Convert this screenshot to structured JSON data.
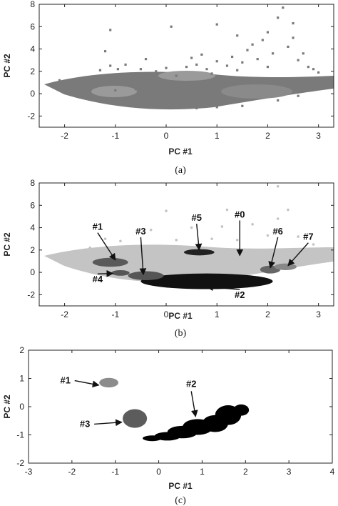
{
  "chart_data": [
    {
      "type": "scatter",
      "panel": "a",
      "caption": "(a)",
      "xlabel": "PC #1",
      "ylabel": "PC #2",
      "xlim": [
        -2.5,
        3.3
      ],
      "ylim": [
        -3,
        8
      ],
      "xticks": [
        -2,
        -1,
        0,
        1,
        2,
        3
      ],
      "yticks": [
        -2,
        0,
        2,
        4,
        6,
        8
      ],
      "marker": "square",
      "colors": {
        "points": "#7a7a7a",
        "dense": "#9a9a9a"
      },
      "points": [
        [
          -2.1,
          1.2
        ],
        [
          -2.0,
          0.6
        ],
        [
          -1.9,
          1.0
        ],
        [
          -1.8,
          0.4
        ],
        [
          -1.7,
          1.3
        ],
        [
          -1.6,
          0.2
        ],
        [
          -1.5,
          1.1
        ],
        [
          -1.4,
          0.8
        ],
        [
          -1.3,
          2.1
        ],
        [
          -1.2,
          3.8
        ],
        [
          -1.1,
          2.5
        ],
        [
          -1.05,
          1.6
        ],
        [
          -1.0,
          0.3
        ],
        [
          -0.95,
          2.2
        ],
        [
          -0.9,
          1.0
        ],
        [
          -0.8,
          2.6
        ],
        [
          -0.7,
          1.8
        ],
        [
          -0.6,
          0.4
        ],
        [
          -0.5,
          2.2
        ],
        [
          -0.4,
          3.1
        ],
        [
          -0.3,
          1.4
        ],
        [
          -0.2,
          2.0
        ],
        [
          -0.1,
          0.8
        ],
        [
          0.0,
          2.3
        ],
        [
          0.1,
          1.0
        ],
        [
          0.2,
          1.6
        ],
        [
          0.3,
          0.9
        ],
        [
          0.4,
          2.4
        ],
        [
          0.5,
          3.2
        ],
        [
          0.6,
          2.6
        ],
        [
          0.7,
          3.5
        ],
        [
          0.8,
          2.2
        ],
        [
          0.9,
          1.8
        ],
        [
          1.0,
          2.9
        ],
        [
          1.1,
          1.4
        ],
        [
          1.2,
          2.5
        ],
        [
          1.3,
          3.3
        ],
        [
          1.4,
          2.1
        ],
        [
          1.5,
          2.8
        ],
        [
          1.6,
          3.9
        ],
        [
          1.7,
          4.4
        ],
        [
          1.8,
          3.1
        ],
        [
          1.9,
          4.8
        ],
        [
          2.0,
          2.4
        ],
        [
          2.1,
          3.6
        ],
        [
          2.2,
          6.8
        ],
        [
          2.3,
          7.7
        ],
        [
          2.4,
          4.2
        ],
        [
          2.5,
          6.3
        ],
        [
          2.6,
          3.0
        ],
        [
          2.7,
          3.6
        ],
        [
          2.8,
          2.4
        ],
        [
          2.9,
          2.2
        ],
        [
          3.0,
          1.9
        ],
        [
          -1.1,
          5.7
        ],
        [
          0.1,
          6.0
        ],
        [
          1.0,
          6.2
        ],
        [
          1.4,
          5.2
        ],
        [
          2.0,
          5.5
        ],
        [
          2.5,
          5.0
        ],
        [
          -0.7,
          -0.4
        ],
        [
          -0.2,
          -1.2
        ],
        [
          0.6,
          -1.3
        ],
        [
          1.5,
          -1.1
        ],
        [
          2.2,
          -0.6
        ],
        [
          0.0,
          -1.0
        ],
        [
          1.0,
          -1.2
        ],
        [
          2.6,
          -0.2
        ]
      ]
    },
    {
      "type": "scatter",
      "panel": "b",
      "caption": "(b)",
      "xlabel": "PC #1",
      "ylabel": "PC #2",
      "xlim": [
        -2.5,
        3.3
      ],
      "ylim": [
        -3,
        8
      ],
      "xticks": [
        -2,
        -1,
        0,
        1,
        2,
        3
      ],
      "yticks": [
        -2,
        0,
        2,
        4,
        6,
        8
      ],
      "colors": {
        "background": "#c4c4c4",
        "dark": "#111111",
        "mid": "#666666",
        "light": "#888888"
      },
      "clusters": [
        {
          "label": "#0",
          "shape": "background"
        },
        {
          "label": "#1",
          "cx": -1.1,
          "cy": 0.9,
          "rx": 0.35,
          "ry": 0.4,
          "color": "#5a5a5a",
          "label_at": [
            -1.35,
            3.8
          ],
          "arrow_to": [
            -1.0,
            1.1
          ]
        },
        {
          "label": "#2",
          "cx": 0.8,
          "cy": -0.8,
          "rx": 1.3,
          "ry": 0.7,
          "color": "#111111",
          "label_at": [
            1.45,
            -2.3
          ],
          "arrow_to": [
            0.8,
            -1.3
          ]
        },
        {
          "label": "#3",
          "cx": -0.4,
          "cy": -0.3,
          "rx": 0.35,
          "ry": 0.4,
          "color": "#555555",
          "label_at": [
            -0.5,
            3.4
          ],
          "arrow_to": [
            -0.45,
            -0.2
          ]
        },
        {
          "label": "#4",
          "cx": -0.9,
          "cy": -0.05,
          "rx": 0.18,
          "ry": 0.25,
          "color": "#555555",
          "label_at": [
            -1.35,
            -0.9
          ],
          "arrow_to": [
            -1.05,
            -0.1
          ]
        },
        {
          "label": "#5",
          "cx": 0.65,
          "cy": 1.8,
          "rx": 0.3,
          "ry": 0.28,
          "color": "#222222",
          "label_at": [
            0.6,
            4.6
          ],
          "arrow_to": [
            0.65,
            2.0
          ]
        },
        {
          "label": "#6",
          "cx": 2.05,
          "cy": 0.25,
          "rx": 0.2,
          "ry": 0.35,
          "color": "#666666",
          "label_at": [
            2.2,
            3.4
          ],
          "arrow_to": [
            2.05,
            0.4
          ]
        },
        {
          "label": "#7",
          "cx": 2.35,
          "cy": 0.5,
          "rx": 0.22,
          "ry": 0.3,
          "color": "#888888",
          "label_at": [
            2.8,
            2.9
          ],
          "arrow_to": [
            2.4,
            0.6
          ]
        }
      ],
      "annotations": [
        {
          "text": "#0",
          "at": [
            1.45,
            4.9
          ],
          "arrow_to": [
            1.45,
            1.5
          ]
        }
      ],
      "bg_points": [
        [
          -1.2,
          3.0
        ],
        [
          -0.9,
          2.8
        ],
        [
          -0.3,
          3.8
        ],
        [
          0.2,
          2.9
        ],
        [
          0.5,
          4.0
        ],
        [
          0.9,
          3.0
        ],
        [
          1.1,
          4.1
        ],
        [
          1.4,
          2.9
        ],
        [
          1.7,
          4.3
        ],
        [
          2.0,
          3.3
        ],
        [
          2.2,
          4.8
        ],
        [
          2.4,
          5.6
        ],
        [
          2.6,
          3.2
        ],
        [
          2.9,
          2.5
        ],
        [
          2.2,
          7.7
        ],
        [
          -1.8,
          1.5
        ],
        [
          -2.0,
          0.8
        ],
        [
          -1.5,
          2.2
        ],
        [
          0.0,
          5.5
        ],
        [
          1.2,
          5.6
        ]
      ]
    },
    {
      "type": "scatter",
      "panel": "c",
      "caption": "(c)",
      "xlabel": "PC #1",
      "ylabel": "PC #2",
      "xlim": [
        -3,
        4
      ],
      "ylim": [
        -2,
        2
      ],
      "xticks": [
        -3,
        -2,
        -1,
        0,
        1,
        2,
        3,
        4
      ],
      "yticks": [
        -2,
        -1,
        0,
        1,
        2
      ],
      "clusters": [
        {
          "label": "#1",
          "color": "#8c8c8c",
          "blobs": [
            [
              -1.15,
              0.85,
              0.22,
              0.17
            ]
          ],
          "label_at": [
            -2.15,
            0.82
          ],
          "arrow_to": [
            -1.38,
            0.76
          ]
        },
        {
          "label": "#2",
          "color": "#000000",
          "blobs": [
            [
              -0.15,
              -1.12,
              0.22,
              0.1
            ],
            [
              0.2,
              -1.05,
              0.3,
              0.15
            ],
            [
              0.55,
              -0.9,
              0.35,
              0.22
            ],
            [
              0.9,
              -0.72,
              0.35,
              0.28
            ],
            [
              1.3,
              -0.6,
              0.3,
              0.3
            ],
            [
              1.6,
              -0.3,
              0.3,
              0.35
            ],
            [
              1.9,
              -0.12,
              0.18,
              0.2
            ]
          ],
          "label_at": [
            0.75,
            0.7
          ],
          "arrow_to": [
            0.85,
            -0.35
          ]
        },
        {
          "label": "#3",
          "color": "#5c5c5c",
          "blobs": [
            [
              -0.55,
              -0.42,
              0.28,
              0.33
            ]
          ],
          "label_at": [
            -1.7,
            -0.72
          ],
          "arrow_to": [
            -0.85,
            -0.55
          ]
        }
      ]
    }
  ]
}
